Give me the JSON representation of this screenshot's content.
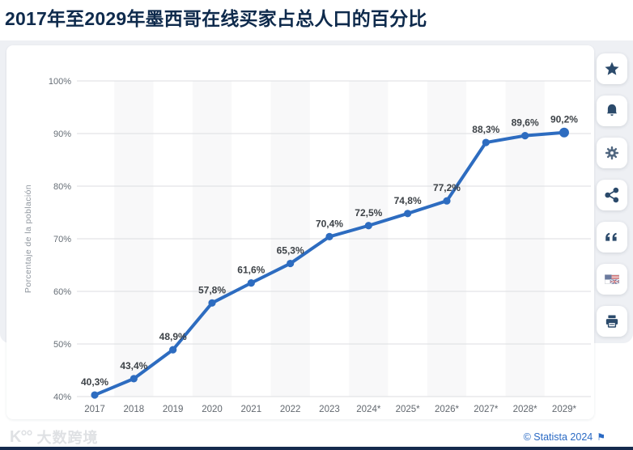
{
  "header": {
    "title": "2017年至2029年墨西哥在线买家占总人口的百分比"
  },
  "chart_data": {
    "type": "line",
    "title": "2017年至2029年墨西哥在线买家占总人口的百分比",
    "ylabel": "Porcentaje de la población",
    "categories": [
      "2017",
      "2018",
      "2019",
      "2020",
      "2021",
      "2022",
      "2023",
      "2024*",
      "2025*",
      "2026*",
      "2027*",
      "2028*",
      "2029*"
    ],
    "values": [
      40.3,
      43.4,
      48.9,
      57.8,
      61.6,
      65.3,
      70.4,
      72.5,
      74.8,
      77.2,
      88.3,
      89.6,
      90.2
    ],
    "labels": [
      "40,3%",
      "43,4%",
      "48,9%",
      "57,8%",
      "61,6%",
      "65,3%",
      "70,4%",
      "72,5%",
      "74,8%",
      "77,2%",
      "88,3%",
      "89,6%",
      "90,2%"
    ],
    "ylim": [
      40,
      100
    ],
    "ytick_step": 10,
    "yticks": [
      "40%",
      "50%",
      "60%",
      "70%",
      "80%",
      "90%",
      "100%"
    ],
    "grid": true,
    "legend": "none",
    "line_color": "#2d6cc0",
    "band_color": "#f8f8f9",
    "grid_color": "#dcdee1"
  },
  "sidebar": {
    "buttons": [
      "star",
      "bell",
      "gear",
      "share",
      "quote",
      "language-flag",
      "print"
    ]
  },
  "footer": {
    "watermark_logo": "K°°",
    "watermark_text": "大数跨境",
    "credit": "© Statista 2024",
    "credit_flag": "⚑"
  }
}
